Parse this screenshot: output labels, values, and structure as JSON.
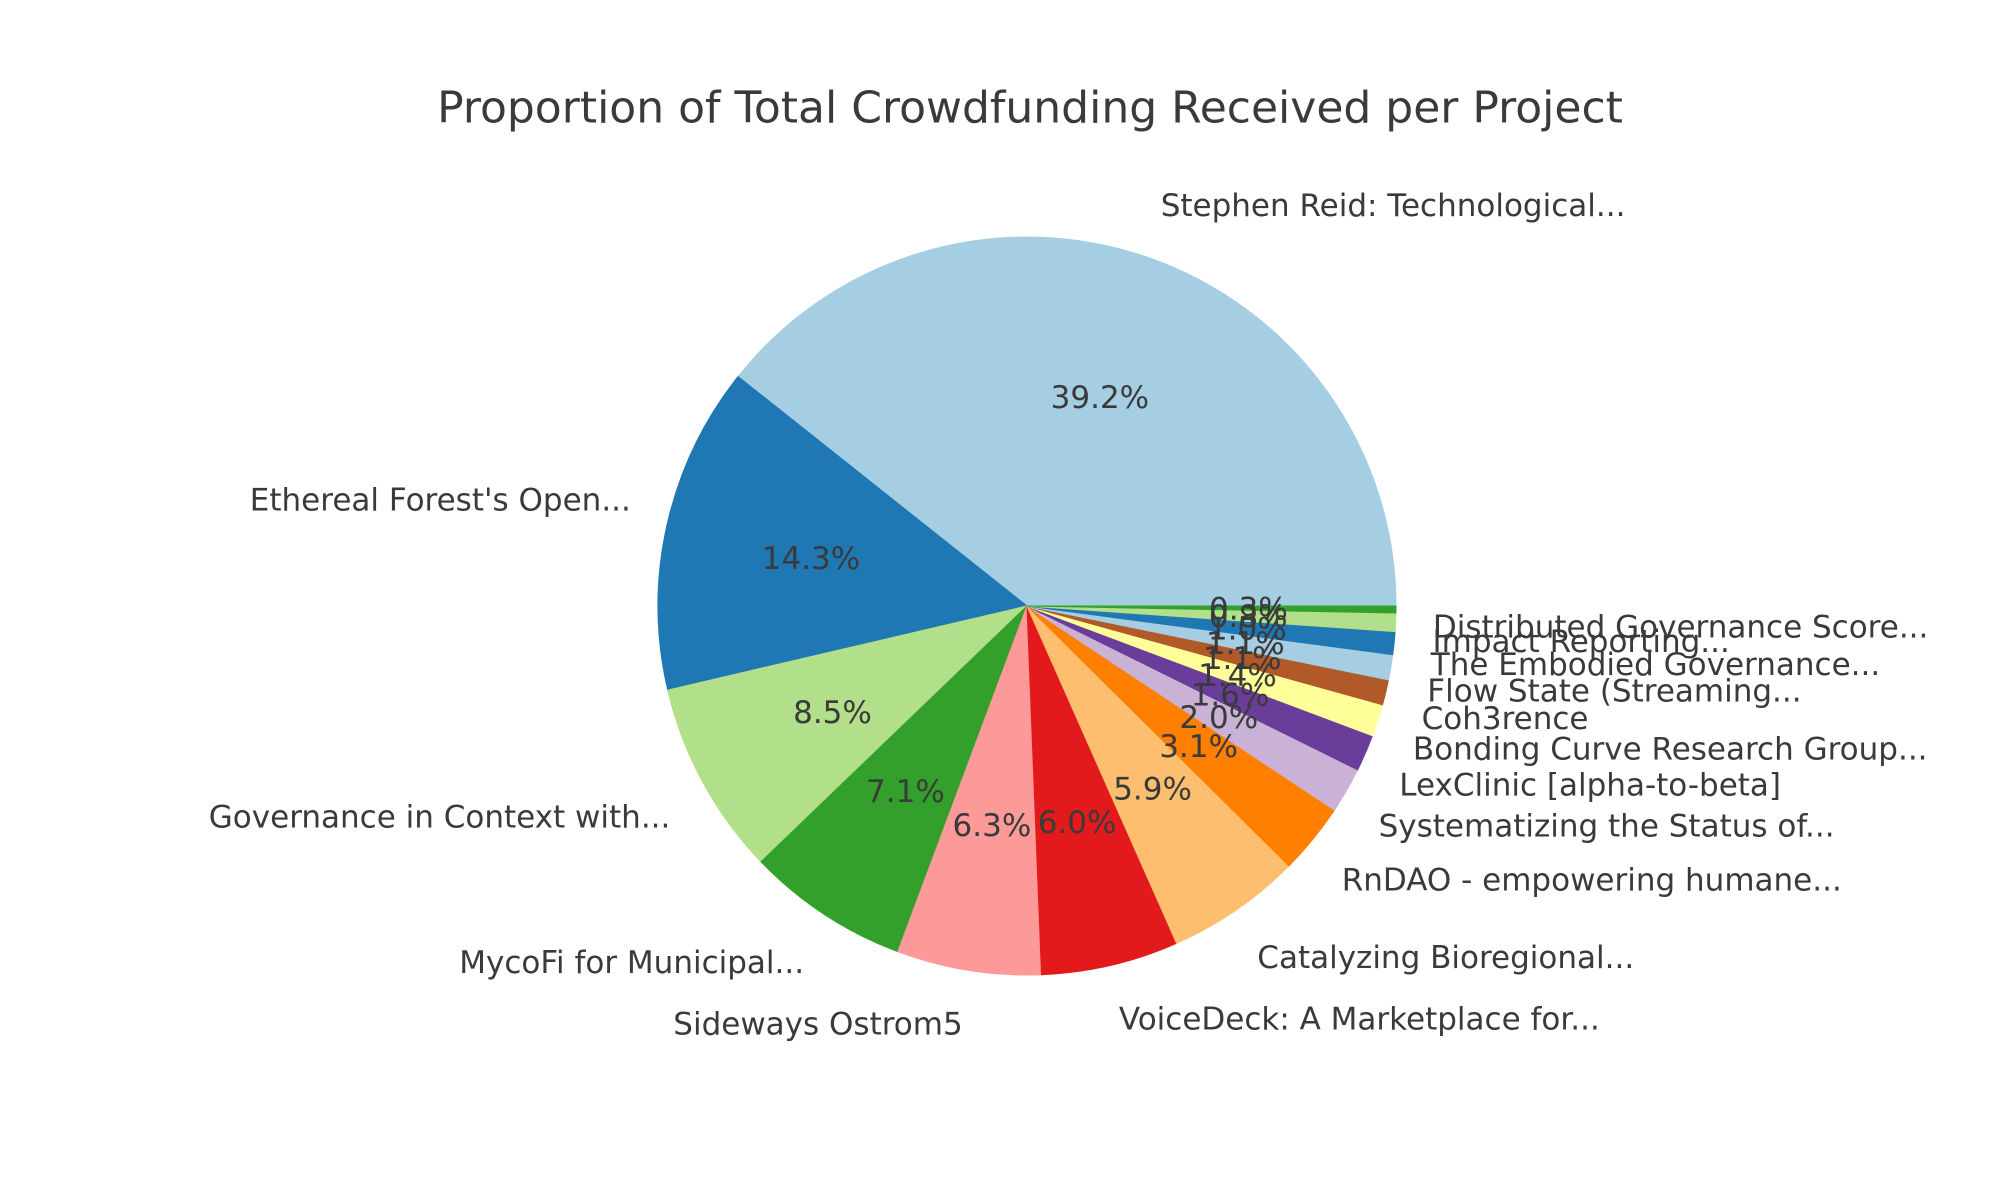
{
  "figure": {
    "background": "#ffffff",
    "text_color": "#3a3a3a"
  },
  "chart_data": {
    "type": "pie",
    "title": "Proportion of Total Crowdfunding Received per Project",
    "legend": "none",
    "start_angle_deg": 0,
    "direction": "counterclockwise",
    "value_unit": "percent",
    "slices": [
      {
        "label": "Stephen Reid: Technological...",
        "value": 39.2,
        "pct_label": "39.2%",
        "color": "#a6cee3"
      },
      {
        "label": "Ethereal Forest's Open...",
        "value": 14.3,
        "pct_label": "14.3%",
        "color": "#1f78b4"
      },
      {
        "label": "Governance in Context with...",
        "value": 8.5,
        "pct_label": "8.5%",
        "color": "#b2df8a"
      },
      {
        "label": "MycoFi for Municipal...",
        "value": 7.1,
        "pct_label": "7.1%",
        "color": "#33a02c"
      },
      {
        "label": "Sideways Ostrom5",
        "value": 6.3,
        "pct_label": "6.3%",
        "color": "#fb9a99"
      },
      {
        "label": "VoiceDeck: A Marketplace for...",
        "value": 6.0,
        "pct_label": "6.0%",
        "color": "#e31a1c"
      },
      {
        "label": "Catalyzing Bioregional...",
        "value": 5.9,
        "pct_label": "5.9%",
        "color": "#fdbf6f"
      },
      {
        "label": "RnDAO - empowering humane...",
        "value": 3.1,
        "pct_label": "3.1%",
        "color": "#ff7f00"
      },
      {
        "label": "Systematizing the Status of...",
        "value": 2.0,
        "pct_label": "2.0%",
        "color": "#cab2d6"
      },
      {
        "label": "LexClinic [alpha-to-beta]",
        "value": 1.6,
        "pct_label": "1.6%",
        "color": "#6a3d9a"
      },
      {
        "label": "Bonding Curve Research Group...",
        "value": 1.4,
        "pct_label": "1.4%",
        "color": "#ffff99"
      },
      {
        "label": "Coh3rence",
        "value": 1.1,
        "pct_label": "1.1%",
        "color": "#b15928"
      },
      {
        "label": "Flow State (Streaming...",
        "value": 1.1,
        "pct_label": "1.1%",
        "color": "#a6cee3"
      },
      {
        "label": "The Embodied Governance...",
        "value": 1.0,
        "pct_label": "1.0%",
        "color": "#1f78b4"
      },
      {
        "label": "Impact Reporting...",
        "value": 0.8,
        "pct_label": "0.8%",
        "color": "#b2df8a"
      },
      {
        "label": "Distributed Governance Score...",
        "value": 0.3,
        "pct_label": "0.3%",
        "color": "#33a02c"
      }
    ]
  }
}
